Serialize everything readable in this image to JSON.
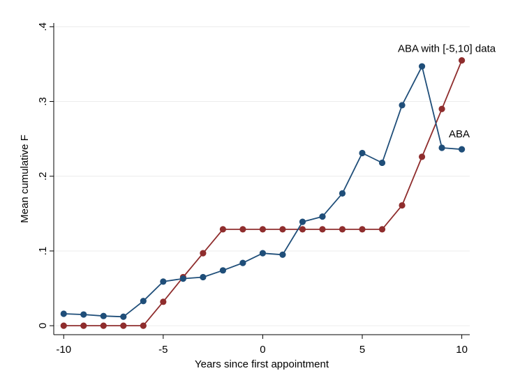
{
  "chart_data": {
    "type": "line",
    "title": "",
    "xlabel": "Years since first appointment",
    "ylabel": "Mean cumulative F",
    "xlim": [
      -10.5,
      10.4
    ],
    "ylim": [
      -0.012,
      0.405
    ],
    "xticks": [
      -10,
      -5,
      0,
      5,
      10
    ],
    "xtick_labels": [
      "-10",
      "-5",
      "0",
      "5",
      "10"
    ],
    "yticks": [
      0,
      0.1,
      0.2,
      0.3,
      0.4
    ],
    "ytick_labels": [
      "0",
      ".1",
      ".2",
      ".3",
      ".4"
    ],
    "grid": true,
    "legend": "none",
    "x": [
      -10,
      -9,
      -8,
      -7,
      -6,
      -5,
      -4,
      -3,
      -2,
      -1,
      0,
      1,
      2,
      3,
      4,
      5,
      6,
      7,
      8,
      9,
      10
    ],
    "series": [
      {
        "name": "ABA",
        "color": "#1f4e79",
        "values": [
          0.016,
          0.015,
          0.013,
          0.012,
          0.033,
          0.059,
          0.063,
          0.065,
          0.074,
          0.084,
          0.097,
          0.095,
          0.139,
          0.146,
          0.177,
          0.231,
          0.218,
          0.295,
          0.347,
          0.238,
          0.236
        ]
      },
      {
        "name": "ABA with [-5,10] data",
        "color": "#8f2d2d",
        "values": [
          0.0,
          0.0,
          0.0,
          0.0,
          0.0,
          0.032,
          0.065,
          0.097,
          0.129,
          0.129,
          0.129,
          0.129,
          0.129,
          0.129,
          0.129,
          0.129,
          0.129,
          0.161,
          0.226,
          0.29,
          0.355
        ]
      }
    ]
  }
}
